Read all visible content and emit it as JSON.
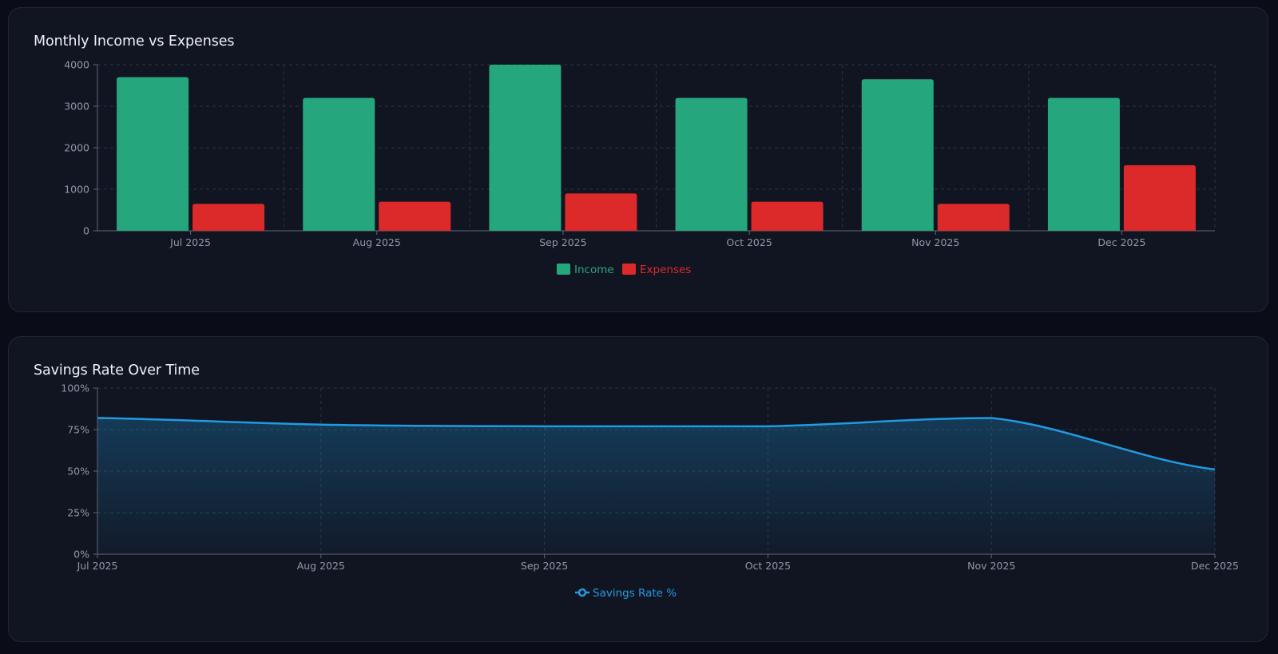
{
  "colors": {
    "background": "#0a0d17",
    "card": "#111522",
    "income": "#26a67c",
    "expenses": "#dc2a2a",
    "savings": "#1f9be0",
    "grid": "#2a3344",
    "axis_text": "#8f98a8",
    "title": "#eef1f6"
  },
  "chart_data": [
    {
      "type": "bar",
      "title": "Monthly Income vs Expenses",
      "categories": [
        "Jul 2025",
        "Aug 2025",
        "Sep 2025",
        "Oct 2025",
        "Nov 2025",
        "Dec 2025"
      ],
      "series": [
        {
          "name": "Income",
          "color": "#26a67c",
          "values": [
            3700,
            3200,
            4000,
            3200,
            3650,
            3200
          ]
        },
        {
          "name": "Expenses",
          "color": "#dc2a2a",
          "values": [
            650,
            700,
            900,
            700,
            650,
            1580
          ]
        }
      ],
      "ylim": [
        0,
        4000
      ],
      "yticks": [
        "0",
        "1000",
        "2000",
        "3000",
        "4000"
      ],
      "grid": true,
      "legend": "bottom-center"
    },
    {
      "type": "area",
      "title": "Savings Rate Over Time",
      "categories": [
        "Jul 2025",
        "Aug 2025",
        "Sep 2025",
        "Oct 2025",
        "Nov 2025",
        "Dec 2025"
      ],
      "series": [
        {
          "name": "Savings Rate %",
          "color": "#1f9be0",
          "values": [
            82,
            78,
            77,
            77,
            82,
            51
          ]
        }
      ],
      "ylim": [
        0,
        100
      ],
      "yticks": [
        "0%",
        "25%",
        "50%",
        "75%",
        "100%"
      ],
      "grid": true,
      "legend": "bottom-center"
    }
  ]
}
